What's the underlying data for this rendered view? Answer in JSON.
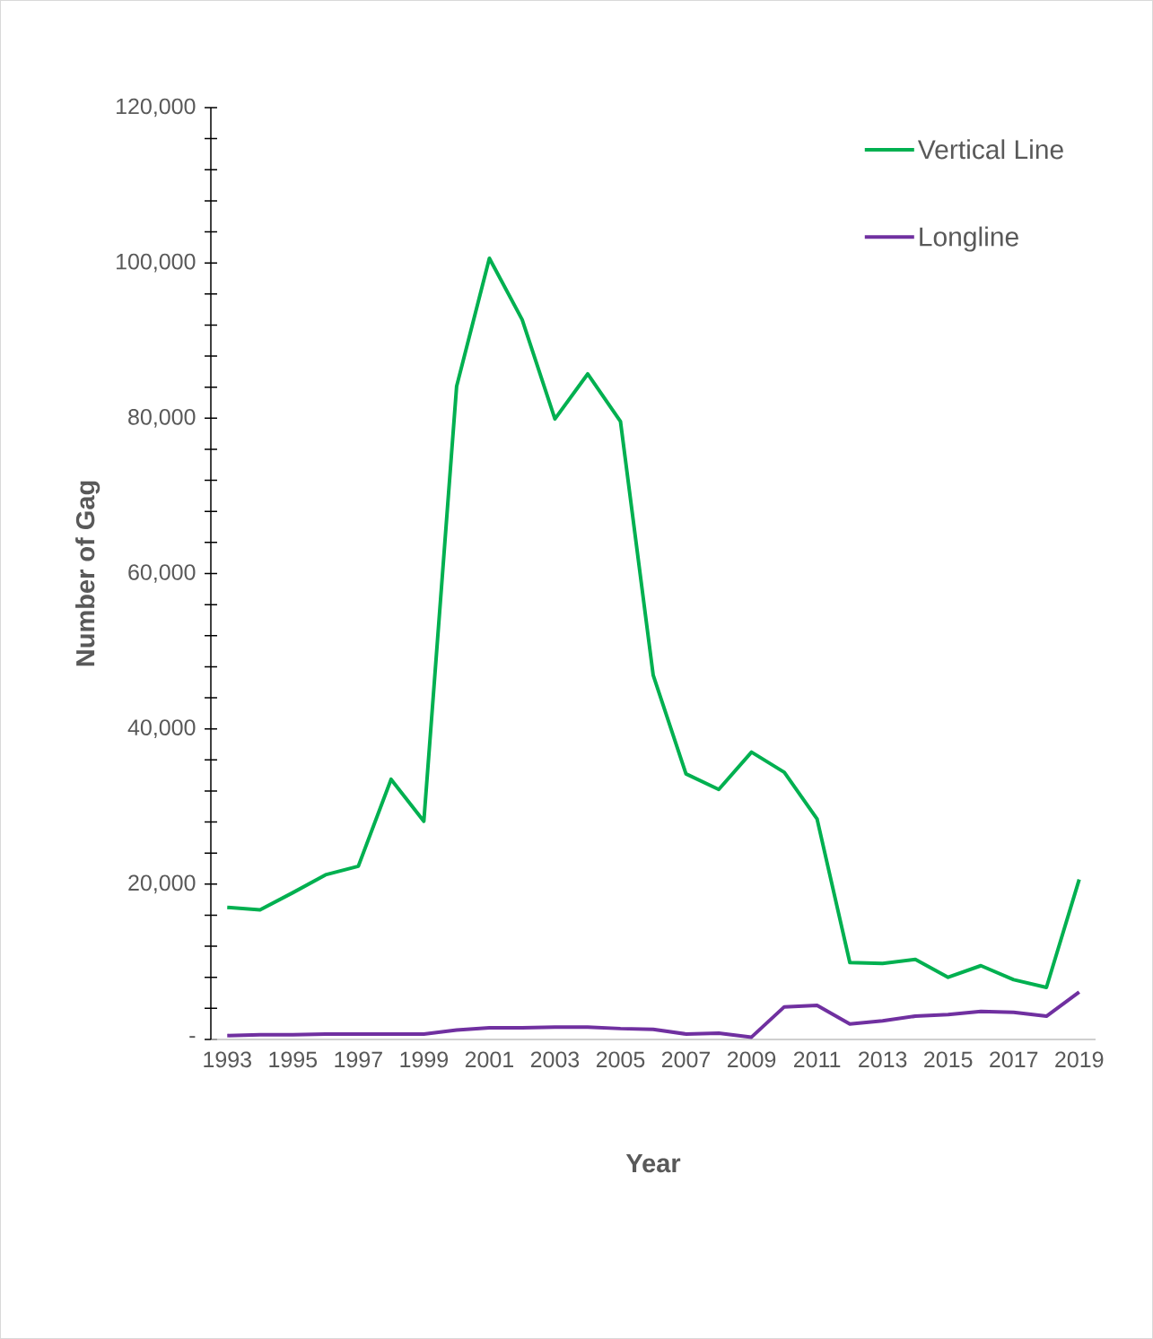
{
  "chart_data": {
    "type": "line",
    "xlabel": "Year",
    "ylabel": "Number of Gag",
    "x": [
      1993,
      1994,
      1995,
      1996,
      1997,
      1998,
      1999,
      2000,
      2001,
      2002,
      2003,
      2004,
      2005,
      2006,
      2007,
      2008,
      2009,
      2010,
      2011,
      2012,
      2013,
      2014,
      2015,
      2016,
      2017,
      2018,
      2019
    ],
    "series": [
      {
        "name": "Vertical Line",
        "color": "#00b050",
        "values": [
          17000,
          16700,
          18900,
          21200,
          22300,
          33500,
          28100,
          84100,
          100600,
          92700,
          79900,
          85700,
          79600,
          46900,
          34200,
          32200,
          37000,
          34400,
          28400,
          9900,
          9800,
          10300,
          8000,
          9500,
          7700,
          6700,
          20600
        ]
      },
      {
        "name": "Longline",
        "color": "#7030a0",
        "values": [
          500,
          600,
          600,
          700,
          700,
          700,
          700,
          1200,
          1500,
          1500,
          1600,
          1600,
          1400,
          1300,
          700,
          800,
          300,
          4200,
          4400,
          2000,
          2400,
          3000,
          3200,
          3600,
          3500,
          3000,
          6100
        ]
      }
    ],
    "xlim": [
      1992.5,
      2019.5
    ],
    "xticks": [
      1993,
      1995,
      1997,
      1999,
      2001,
      2003,
      2005,
      2007,
      2009,
      2011,
      2013,
      2015,
      2017,
      2019
    ],
    "ylim": [
      0,
      120000
    ],
    "yticks": [
      {
        "value": 0,
        "label": "-"
      },
      {
        "value": 4000,
        "label": null
      },
      {
        "value": 8000,
        "label": null
      },
      {
        "value": 12000,
        "label": null
      },
      {
        "value": 16000,
        "label": null
      },
      {
        "value": 20000,
        "label": "20,000"
      },
      {
        "value": 24000,
        "label": null
      },
      {
        "value": 28000,
        "label": null
      },
      {
        "value": 32000,
        "label": null
      },
      {
        "value": 36000,
        "label": null
      },
      {
        "value": 40000,
        "label": "40,000"
      },
      {
        "value": 44000,
        "label": null
      },
      {
        "value": 48000,
        "label": null
      },
      {
        "value": 52000,
        "label": null
      },
      {
        "value": 56000,
        "label": null
      },
      {
        "value": 60000,
        "label": "60,000"
      },
      {
        "value": 64000,
        "label": null
      },
      {
        "value": 68000,
        "label": null
      },
      {
        "value": 72000,
        "label": null
      },
      {
        "value": 76000,
        "label": null
      },
      {
        "value": 80000,
        "label": "80,000"
      },
      {
        "value": 84000,
        "label": null
      },
      {
        "value": 88000,
        "label": null
      },
      {
        "value": 92000,
        "label": null
      },
      {
        "value": 96000,
        "label": null
      },
      {
        "value": 100000,
        "label": "100,000"
      },
      {
        "value": 104000,
        "label": null
      },
      {
        "value": 108000,
        "label": null
      },
      {
        "value": 112000,
        "label": null
      },
      {
        "value": 116000,
        "label": null
      },
      {
        "value": 120000,
        "label": "120,000"
      }
    ],
    "grid": false,
    "legend": "top right",
    "line_style": "solid",
    "marker": "none"
  }
}
